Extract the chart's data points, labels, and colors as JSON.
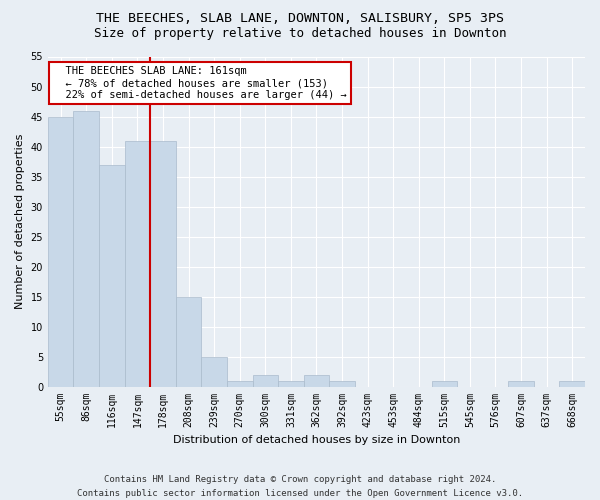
{
  "title1": "THE BEECHES, SLAB LANE, DOWNTON, SALISBURY, SP5 3PS",
  "title2": "Size of property relative to detached houses in Downton",
  "xlabel": "Distribution of detached houses by size in Downton",
  "ylabel": "Number of detached properties",
  "categories": [
    "55sqm",
    "86sqm",
    "116sqm",
    "147sqm",
    "178sqm",
    "208sqm",
    "239sqm",
    "270sqm",
    "300sqm",
    "331sqm",
    "362sqm",
    "392sqm",
    "423sqm",
    "453sqm",
    "484sqm",
    "515sqm",
    "545sqm",
    "576sqm",
    "607sqm",
    "637sqm",
    "668sqm"
  ],
  "values": [
    45,
    46,
    37,
    41,
    41,
    15,
    5,
    1,
    2,
    1,
    2,
    1,
    0,
    0,
    0,
    1,
    0,
    0,
    1,
    0,
    1
  ],
  "bar_color": "#c8d8e8",
  "bar_edge_color": "#aabbcc",
  "vline_x": 3.5,
  "vline_color": "#cc0000",
  "annotation_text": "  THE BEECHES SLAB LANE: 161sqm\n  ← 78% of detached houses are smaller (153)\n  22% of semi-detached houses are larger (44) →",
  "annotation_box_color": "#ffffff",
  "annotation_box_edge": "#cc0000",
  "ylim": [
    0,
    55
  ],
  "yticks": [
    0,
    5,
    10,
    15,
    20,
    25,
    30,
    35,
    40,
    45,
    50,
    55
  ],
  "footer1": "Contains HM Land Registry data © Crown copyright and database right 2024.",
  "footer2": "Contains public sector information licensed under the Open Government Licence v3.0.",
  "bg_color": "#e8eef4",
  "grid_color": "#ffffff",
  "title1_fontsize": 9.5,
  "title2_fontsize": 9,
  "axis_label_fontsize": 8,
  "tick_fontsize": 7,
  "footer_fontsize": 6.5,
  "ann_fontsize": 7.5
}
